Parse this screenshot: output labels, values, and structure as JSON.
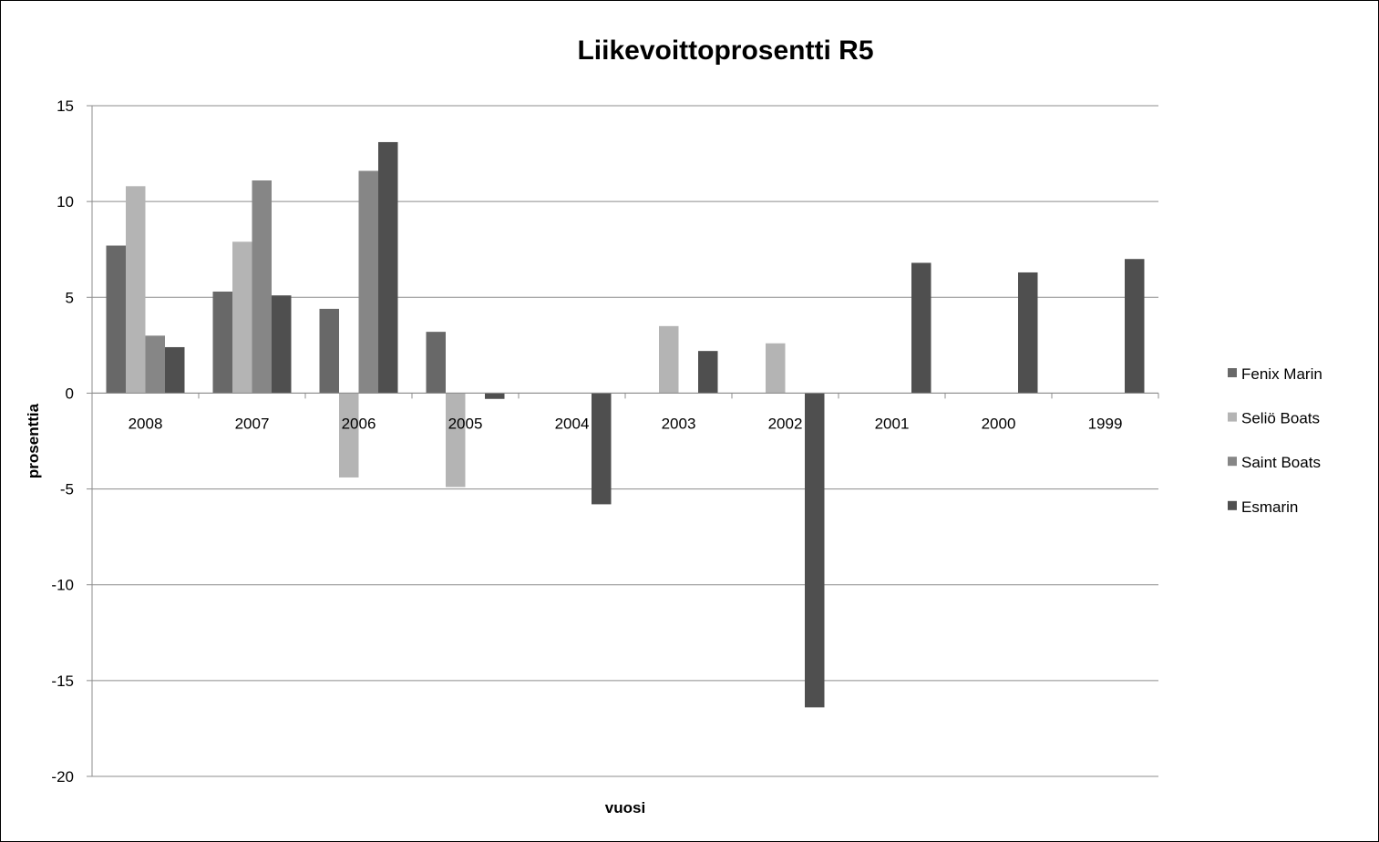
{
  "chart_data": {
    "type": "bar",
    "title": "Liikevoittoprosentti R5",
    "xlabel": "vuosi",
    "ylabel": "prosenttia",
    "ylim": [
      -20,
      15
    ],
    "yticks": [
      "15",
      "10",
      "5",
      "0",
      "-5",
      "-10",
      "-15",
      "-20"
    ],
    "ytick_values": [
      15,
      10,
      5,
      0,
      -5,
      -10,
      -15,
      -20
    ],
    "categories": [
      "2008",
      "2007",
      "2006",
      "2005",
      "2004",
      "2003",
      "2002",
      "2001",
      "2000",
      "1999"
    ],
    "grid": true,
    "legend_position": "right",
    "series": [
      {
        "name": "Fenix Marin",
        "color": "#686868",
        "values": [
          7.7,
          5.3,
          4.4,
          3.2,
          null,
          null,
          null,
          null,
          null,
          null
        ]
      },
      {
        "name": "Seliö Boats",
        "color": "#b4b4b4",
        "values": [
          10.8,
          7.9,
          -4.4,
          -4.9,
          null,
          3.5,
          2.6,
          null,
          null,
          null
        ]
      },
      {
        "name": "Saint Boats",
        "color": "#868686",
        "values": [
          3.0,
          11.1,
          11.6,
          null,
          null,
          null,
          null,
          null,
          null,
          null
        ]
      },
      {
        "name": "Esmarin",
        "color": "#4f4f4f",
        "values": [
          2.4,
          5.1,
          13.1,
          -0.3,
          -5.8,
          2.2,
          -16.4,
          6.8,
          6.3,
          7.0
        ]
      }
    ]
  }
}
